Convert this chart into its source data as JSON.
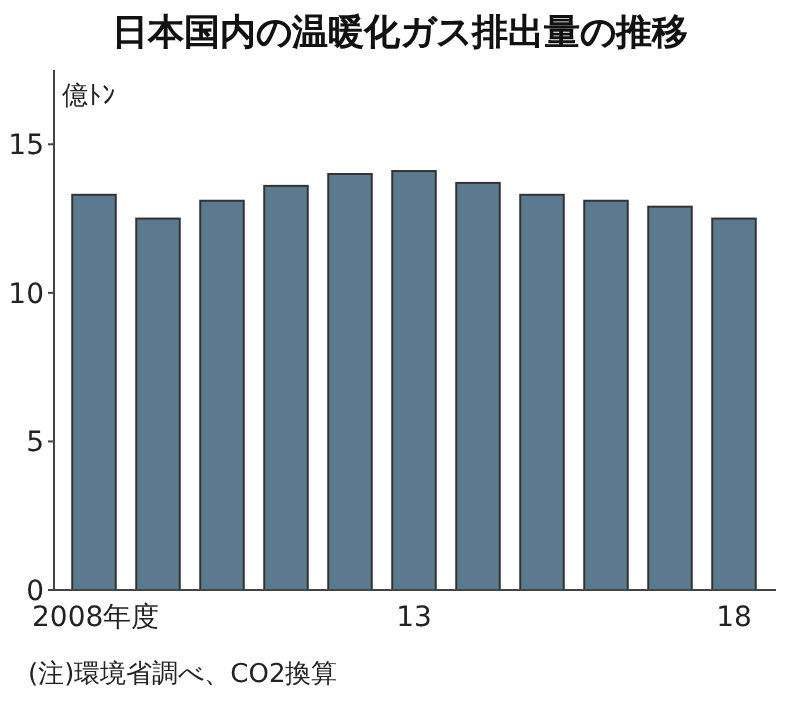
{
  "chart_data": {
    "type": "bar",
    "title": "日本国内の温暖化ガス排出量の推移",
    "ylabel": "億ﾄﾝ",
    "categories": [
      "2008年度",
      null,
      null,
      null,
      null,
      "13",
      null,
      null,
      null,
      null,
      "18"
    ],
    "values": [
      13.3,
      12.5,
      13.1,
      13.6,
      14.0,
      14.1,
      13.7,
      13.3,
      13.1,
      12.9,
      12.5
    ],
    "color": "#5b7a90",
    "ylim": [
      0,
      17.5
    ],
    "yticks": [
      0,
      5,
      10,
      15
    ],
    "grid": false,
    "annotations": [
      "(注)環境省調べ、CO2換算"
    ]
  }
}
